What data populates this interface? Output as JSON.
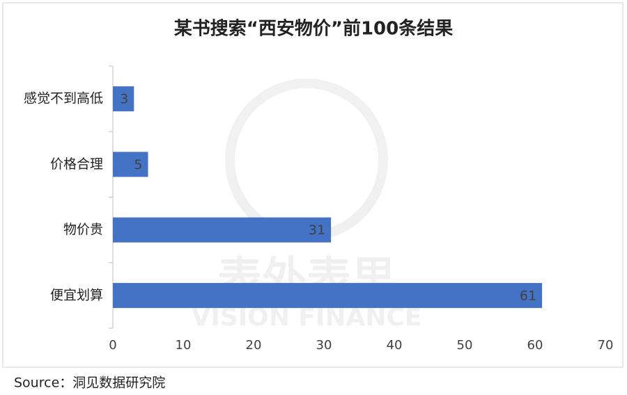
{
  "chart_data": {
    "type": "bar",
    "orientation": "horizontal",
    "title": "某书搜索“西安物价”前100条结果",
    "categories": [
      "感觉不到高低",
      "价格合理",
      "物价贵",
      "便宜划算"
    ],
    "values": [
      3,
      5,
      31,
      61
    ],
    "color": "#4472c4",
    "xlim": [
      0,
      70
    ],
    "xticks": [
      0,
      10,
      20,
      30,
      40,
      50,
      60,
      70
    ],
    "grid": false,
    "watermark": [
      "表外表里",
      "VISION FINANCE"
    ],
    "source": "Source：洞见数据研究院"
  }
}
